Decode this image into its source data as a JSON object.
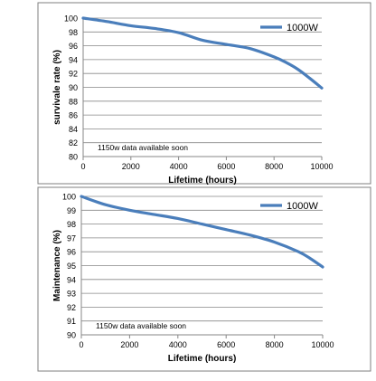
{
  "chart_data": [
    {
      "type": "line",
      "title": "",
      "xlabel": "Lifetime (hours)",
      "ylabel": "survivale rate (%)",
      "xlim": [
        0,
        10000
      ],
      "ylim": [
        80,
        100
      ],
      "xticks": [
        0,
        2000,
        4000,
        6000,
        8000,
        10000
      ],
      "yticks": [
        80,
        82,
        84,
        86,
        88,
        90,
        92,
        94,
        96,
        98,
        100
      ],
      "grid": true,
      "legend_position": "top-right",
      "annotation": "1150w data available soon",
      "series": [
        {
          "name": "1000W",
          "color": "#4a7ebb",
          "x": [
            0,
            1000,
            2000,
            3000,
            4000,
            5000,
            6000,
            7000,
            8000,
            8500,
            9000,
            9500,
            10000
          ],
          "y": [
            100,
            99.5,
            98.9,
            98.5,
            97.9,
            96.8,
            96.2,
            95.6,
            94.4,
            93.6,
            92.6,
            91.3,
            89.9
          ]
        }
      ]
    },
    {
      "type": "line",
      "title": "",
      "xlabel": "Lifetime (hours)",
      "ylabel": "Maintenance (%)",
      "xlim": [
        0,
        10000
      ],
      "ylim": [
        90,
        100
      ],
      "xticks": [
        0,
        2000,
        4000,
        6000,
        8000,
        10000
      ],
      "yticks": [
        90,
        91,
        92,
        93,
        94,
        95,
        96,
        97,
        98,
        99,
        100
      ],
      "grid": true,
      "legend_position": "top-right",
      "annotation": "1150w data available soon",
      "series": [
        {
          "name": "1000W",
          "color": "#4a7ebb",
          "x": [
            0,
            1000,
            2000,
            3000,
            4000,
            5000,
            6000,
            7000,
            8000,
            9000,
            9500,
            10000
          ],
          "y": [
            100,
            99.4,
            99.0,
            98.7,
            98.4,
            98.0,
            97.6,
            97.2,
            96.7,
            96.0,
            95.5,
            94.9
          ]
        }
      ]
    }
  ]
}
